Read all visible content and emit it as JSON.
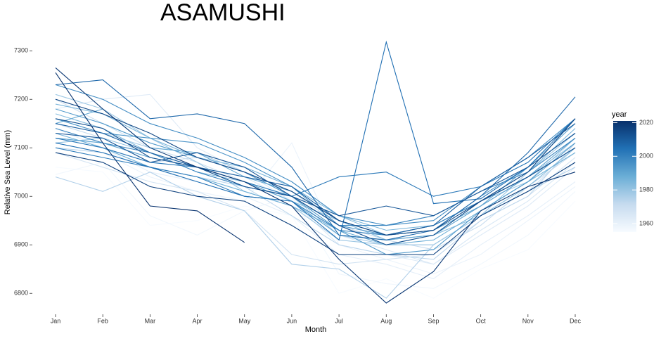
{
  "chart_data": {
    "type": "line",
    "title": "ASAMUSHI",
    "x_label": "Month",
    "y_label": "Relative Sea Level (mm)",
    "categories": [
      "Jan",
      "Feb",
      "Mar",
      "Apr",
      "May",
      "Jun",
      "Jul",
      "Aug",
      "Sep",
      "Oct",
      "Nov",
      "Dec"
    ],
    "ylim": [
      6767,
      7325
    ],
    "yticks": [
      6800,
      6900,
      7000,
      7100,
      7200,
      7300
    ],
    "grid": false,
    "legend": {
      "title": "year",
      "position": "right",
      "clim": [
        1955,
        2021
      ],
      "ticks": [
        1960,
        1980,
        2000,
        2020
      ],
      "colorscale": [
        "#f7fbff",
        "#c6dbef",
        "#6baed6",
        "#2171b5",
        "#08306b"
      ]
    },
    "series": [
      {
        "year": 1955,
        "values": [
          7060,
          7050,
          6940,
          6950,
          6980,
          6960,
          6800,
          6830,
          6790,
          6850,
          6890,
          6990
        ]
      },
      {
        "year": 1957,
        "values": [
          7045,
          7070,
          6960,
          6920,
          6970,
          7000,
          6840,
          6820,
          6810,
          6860,
          6920,
          7010
        ]
      },
      {
        "year": 1959,
        "values": [
          7100,
          7090,
          7040,
          7010,
          6990,
          7110,
          6900,
          6870,
          6840,
          6880,
          6950,
          7020
        ]
      },
      {
        "year": 1961,
        "values": [
          7140,
          7100,
          7050,
          7030,
          7000,
          6960,
          6880,
          6860,
          6830,
          6900,
          6960,
          7030
        ]
      },
      {
        "year": 1963,
        "values": [
          7180,
          7200,
          7210,
          7100,
          7050,
          6990,
          6900,
          6880,
          6860,
          6920,
          6980,
          7060
        ]
      },
      {
        "year": 1965,
        "values": [
          7120,
          7110,
          7080,
          7060,
          7040,
          6990,
          6920,
          6890,
          6860,
          6930,
          6990,
          7070
        ]
      },
      {
        "year": 1967,
        "values": [
          7090,
          7060,
          7030,
          7010,
          6970,
          6880,
          6860,
          6870,
          6880,
          6950,
          7000,
          7080
        ]
      },
      {
        "year": 1969,
        "values": [
          7200,
          7150,
          7100,
          7070,
          7030,
          6980,
          6930,
          6900,
          6900,
          6960,
          7010,
          7100
        ]
      },
      {
        "year": 1971,
        "values": [
          7150,
          7120,
          7070,
          7080,
          7050,
          7010,
          6940,
          6910,
          6890,
          6940,
          7020,
          7090
        ]
      },
      {
        "year": 1973,
        "values": [
          7100,
          7090,
          7060,
          7040,
          7020,
          6960,
          6900,
          6880,
          6870,
          6950,
          7000,
          7110
        ]
      },
      {
        "year": 1975,
        "values": [
          7040,
          7010,
          7050,
          7000,
          6970,
          6860,
          6850,
          6790,
          6900,
          6960,
          7010,
          7060
        ]
      },
      {
        "year": 1977,
        "values": [
          7160,
          7130,
          7100,
          7090,
          7050,
          7000,
          6920,
          6900,
          6920,
          6990,
          7030,
          7120
        ]
      },
      {
        "year": 1979,
        "values": [
          7210,
          7180,
          7120,
          7070,
          7010,
          6980,
          6910,
          6900,
          6900,
          6960,
          7050,
          7130
        ]
      },
      {
        "year": 1981,
        "values": [
          7110,
          7120,
          7090,
          7060,
          7020,
          7000,
          6960,
          6920,
          6940,
          6990,
          7040,
          7110
        ]
      },
      {
        "year": 1983,
        "values": [
          7170,
          7140,
          7090,
          7050,
          7030,
          6990,
          6950,
          6910,
          6920,
          6960,
          7020,
          7100
        ]
      },
      {
        "year": 1985,
        "values": [
          7190,
          7170,
          7120,
          7080,
          7060,
          7020,
          6960,
          6930,
          6940,
          6990,
          7050,
          7140
        ]
      },
      {
        "year": 1987,
        "values": [
          7130,
          7100,
          7060,
          7040,
          7010,
          6980,
          6930,
          6900,
          6910,
          6970,
          7030,
          7090
        ]
      },
      {
        "year": 1989,
        "values": [
          7150,
          7180,
          7100,
          7090,
          7040,
          7010,
          6950,
          6920,
          6930,
          6980,
          7060,
          7150
        ]
      },
      {
        "year": 1991,
        "values": [
          7120,
          7110,
          7080,
          7060,
          7030,
          6990,
          6920,
          6910,
          6920,
          6980,
          7040,
          7120
        ]
      },
      {
        "year": 1993,
        "values": [
          7180,
          7150,
          7110,
          7080,
          7050,
          7000,
          6930,
          6880,
          6890,
          6970,
          7030,
          7110
        ]
      },
      {
        "year": 1995,
        "values": [
          7160,
          7130,
          7120,
          7110,
          7070,
          7020,
          6940,
          6920,
          6930,
          7000,
          7060,
          7130
        ]
      },
      {
        "year": 1997,
        "values": [
          7230,
          7200,
          7150,
          7120,
          7080,
          7030,
          6960,
          6940,
          6950,
          7020,
          7080,
          7160
        ]
      },
      {
        "year": 1999,
        "values": [
          7140,
          7110,
          7090,
          7050,
          7020,
          7000,
          6940,
          6940,
          6960,
          7010,
          7050,
          7120
        ]
      },
      {
        "year": 2001,
        "values": [
          7100,
          7080,
          7060,
          7040,
          7000,
          6990,
          6930,
          6920,
          6940,
          6990,
          7040,
          7100
        ]
      },
      {
        "year": 2003,
        "values": [
          7120,
          7100,
          7070,
          7060,
          7030,
          7000,
          7040,
          7050,
          7000,
          7020,
          7070,
          7160
        ]
      },
      {
        "year": 2005,
        "values": [
          7110,
          7090,
          7060,
          7030,
          7000,
          6990,
          6910,
          7318,
          6985,
          6995,
          7060,
          7160
        ]
      },
      {
        "year": 2007,
        "values": [
          7230,
          7240,
          7160,
          7170,
          7150,
          7060,
          6920,
          6910,
          6930,
          7000,
          7090,
          7205
        ]
      },
      {
        "year": 2009,
        "values": [
          7150,
          7130,
          7090,
          7060,
          7040,
          7020,
          6950,
          6920,
          6940,
          7020,
          7080,
          7150
        ]
      },
      {
        "year": 2011,
        "values": [
          7130,
          7120,
          7070,
          7090,
          7060,
          7000,
          6960,
          6980,
          6960,
          7010,
          7060,
          7130
        ]
      },
      {
        "year": 2013,
        "values": [
          7160,
          7140,
          7080,
          7060,
          7020,
          7000,
          6940,
          6900,
          6920,
          6990,
          7040,
          7100
        ]
      },
      {
        "year": 2015,
        "values": [
          7200,
          7170,
          7130,
          7080,
          7050,
          7010,
          6950,
          6920,
          6930,
          6990,
          7050,
          7160
        ]
      },
      {
        "year": 2017,
        "values": [
          7090,
          7070,
          7020,
          7000,
          6990,
          6940,
          6880,
          6880,
          6880,
          6960,
          7010,
          7070
        ]
      },
      {
        "year": 2019,
        "values": [
          7265,
          7180,
          7100,
          7060,
          7030,
          6980,
          6870,
          6780,
          6845,
          6970,
          7020,
          7050
        ]
      },
      {
        "year": 2020,
        "values": [
          7255,
          7110,
          6980,
          6970,
          6905,
          null,
          null,
          null,
          null,
          null,
          null,
          null
        ]
      }
    ]
  }
}
